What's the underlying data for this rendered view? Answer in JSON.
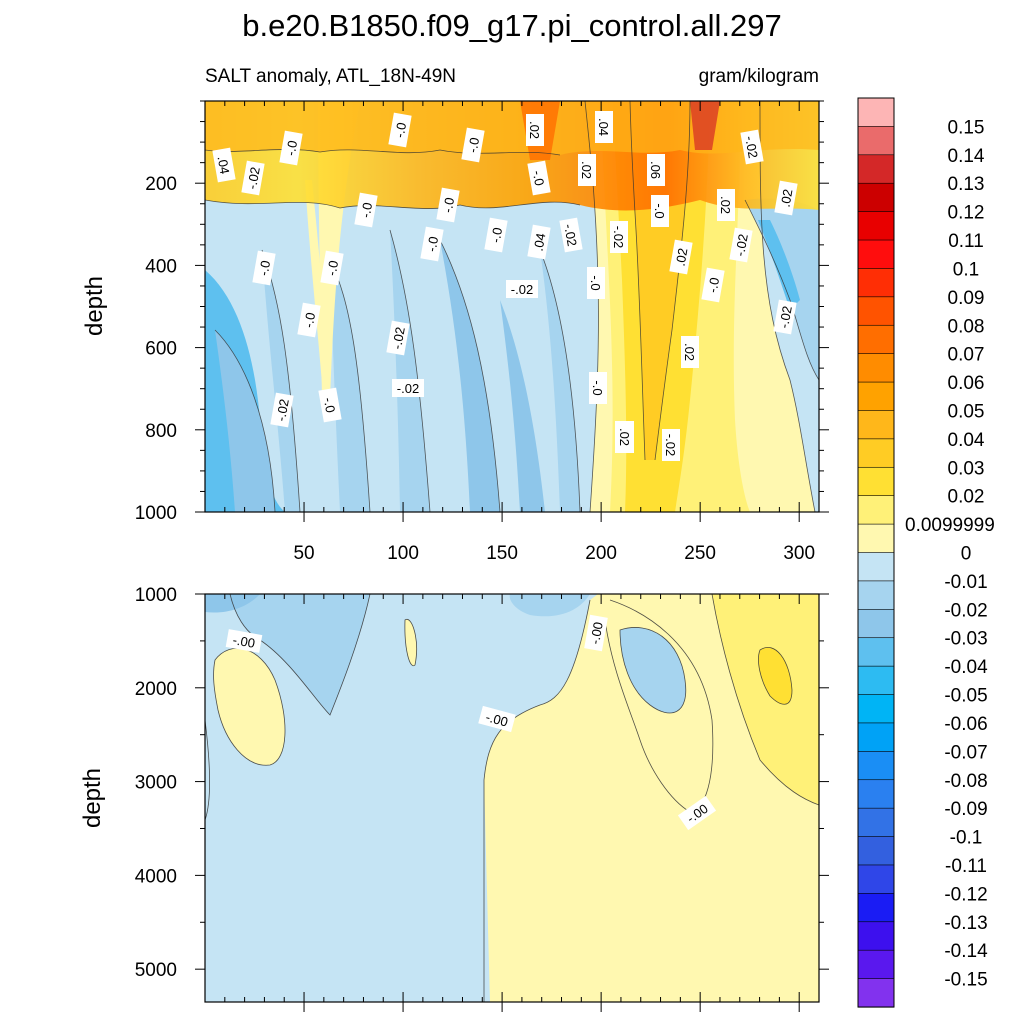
{
  "chart_data": {
    "type": "heatmap",
    "title": "b.e20.B1850.f09_g17.pi_control.all.297",
    "subtitle_left": "SALT anomaly, ATL_18N-49N",
    "subtitle_right": "gram/kilogram",
    "x_range": [
      0,
      310
    ],
    "x_ticks": [
      "50",
      "100",
      "150",
      "200",
      "250",
      "300"
    ],
    "panels": [
      {
        "name": "upper",
        "ylabel": "depth",
        "y_range": [
          0,
          1000
        ],
        "y_ticks": [
          "200",
          "400",
          "600",
          "800",
          "1000"
        ],
        "contour_labels": [
          ".04",
          "-.0",
          "-.0",
          "-.0",
          ".02",
          ".04",
          "-.02",
          "-.02",
          "-.0",
          ".02",
          "-.0",
          ".06",
          ".02",
          "-.0",
          ".02",
          "-.0",
          "-.0",
          ".04",
          "-.0",
          "-.02",
          "-.02",
          "-.02",
          ".02",
          "-.0",
          "-.0",
          "-.02",
          "-.0",
          "-.02",
          "-.0",
          "-.0",
          "-.02",
          "-.02",
          ".02",
          "-.02",
          "-.0",
          "-.0",
          "-.02",
          ".02",
          ".02"
        ]
      },
      {
        "name": "lower",
        "ylabel": "depth",
        "y_range": [
          1000,
          5350
        ],
        "y_ticks": [
          "1000",
          "2000",
          "3000",
          "4000",
          "5000"
        ],
        "contour_labels": [
          "-.00",
          "-.00",
          "-.00",
          "-.00"
        ]
      }
    ],
    "colorbar": {
      "labels": [
        "0.15",
        "0.14",
        "0.13",
        "0.12",
        "0.11",
        "0.1",
        "0.09",
        "0.08",
        "0.07",
        "0.06",
        "0.05",
        "0.04",
        "0.03",
        "0.02",
        "0.0099999",
        "0",
        "-0.01",
        "-0.02",
        "-0.03",
        "-0.04",
        "-0.05",
        "-0.06",
        "-0.07",
        "-0.08",
        "-0.09",
        "-0.1",
        "-0.11",
        "-0.12",
        "-0.13",
        "-0.14",
        "-0.15"
      ],
      "colors": [
        "#fdb5b5",
        "#ea6b6b",
        "#d42828",
        "#cc0000",
        "#e80000",
        "#ff0d0d",
        "#ff2e05",
        "#ff5300",
        "#ff6e00",
        "#ff8c00",
        "#ffa200",
        "#ffb71a",
        "#ffcc24",
        "#ffe033",
        "#fff178",
        "#fff8b0",
        "#c5e4f4",
        "#a6d4ef",
        "#8ec6ea",
        "#5ec0ef",
        "#2dbbf2",
        "#00b4f5",
        "#00a2f6",
        "#1a8ef5",
        "#2a80f0",
        "#3272e6",
        "#3360df",
        "#2f46e8",
        "#1a1cf4",
        "#3d10ee",
        "#5a18ee",
        "#8232ee"
      ]
    }
  }
}
